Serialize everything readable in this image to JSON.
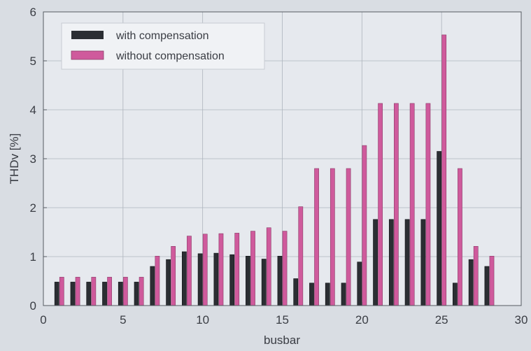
{
  "chart_data": {
    "type": "bar",
    "title": "",
    "xlabel": "busbar",
    "ylabel": "THDv [%]",
    "xlim": [
      0,
      30
    ],
    "ylim": [
      0,
      6
    ],
    "x_ticks": [
      0,
      5,
      10,
      15,
      20,
      25,
      30
    ],
    "y_ticks": [
      0,
      1,
      2,
      3,
      4,
      5,
      6
    ],
    "grid": true,
    "legend_position": "top-left",
    "x": [
      1,
      2,
      3,
      4,
      5,
      6,
      7,
      8,
      9,
      10,
      11,
      12,
      13,
      14,
      15,
      16,
      17,
      18,
      19,
      20,
      21,
      22,
      23,
      24,
      25,
      26,
      27,
      28
    ],
    "series": [
      {
        "name": "with compensation",
        "color": "#2b2e33",
        "values": [
          0.48,
          0.48,
          0.48,
          0.48,
          0.48,
          0.48,
          0.8,
          0.94,
          1.1,
          1.06,
          1.07,
          1.04,
          1.01,
          0.95,
          1.01,
          0.55,
          0.46,
          0.46,
          0.46,
          0.89,
          1.76,
          1.76,
          1.76,
          1.76,
          3.15,
          0.46,
          0.94,
          0.8
        ]
      },
      {
        "name": "without compensation",
        "color": "#cf5a9c",
        "values": [
          0.58,
          0.58,
          0.58,
          0.58,
          0.58,
          0.58,
          1.01,
          1.21,
          1.42,
          1.46,
          1.47,
          1.48,
          1.52,
          1.59,
          1.52,
          2.02,
          2.8,
          2.8,
          2.8,
          3.27,
          4.13,
          4.13,
          4.13,
          4.13,
          5.53,
          2.8,
          1.21,
          1.01
        ]
      }
    ]
  }
}
